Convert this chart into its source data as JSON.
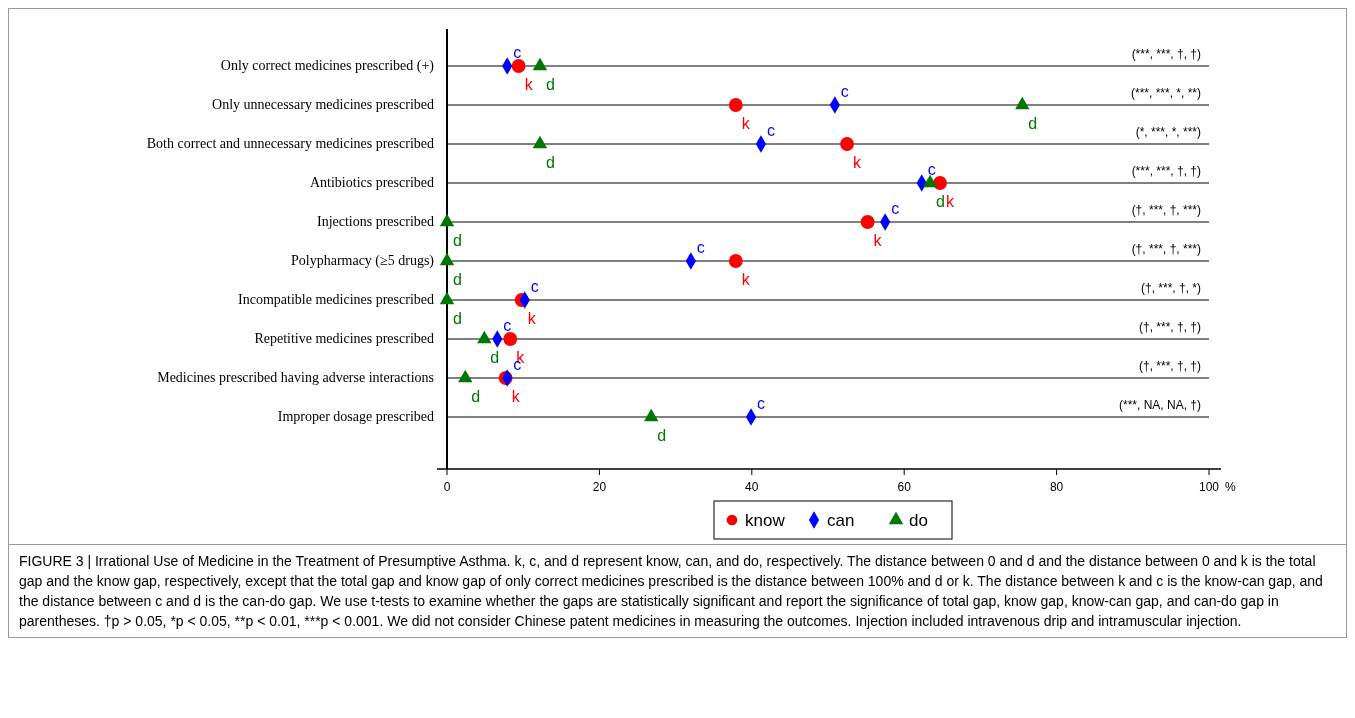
{
  "chart_data": {
    "type": "scatter",
    "orientation": "horizontal",
    "xlabel": "%",
    "categories": [
      "Only correct medicines prescribed (+)",
      "Only unnecessary medicines prescribed",
      "Both correct and unnecessary medicines prescribed",
      "Antibiotics prescribed",
      "Injections prescribed",
      "Polypharmacy (≥5 drugs)",
      "Incompatible medicines prescribed",
      "Repetitive medicines prescribed",
      "Medicines prescribed having adverse interactions",
      "Improper dosage prescribed"
    ],
    "series": [
      {
        "name": "know",
        "color": "#ff0000",
        "marker": "circle",
        "values": [
          9.4,
          37.9,
          52.5,
          64.7,
          55.2,
          37.9,
          9.8,
          8.3,
          7.7,
          null
        ]
      },
      {
        "name": "can",
        "color": "#0000ff",
        "marker": "diamond",
        "values": [
          7.9,
          50.9,
          41.2,
          62.3,
          57.5,
          32.0,
          10.2,
          6.6,
          7.9,
          39.9
        ]
      },
      {
        "name": "do",
        "color": "#007700",
        "marker": "triangle",
        "values": [
          12.2,
          75.5,
          12.2,
          63.4,
          0,
          0,
          0,
          4.9,
          2.4,
          26.8
        ]
      }
    ],
    "xlim": [
      0,
      100
    ],
    "xticks": [
      0,
      20,
      40,
      60,
      80,
      100
    ],
    "grid": "y",
    "legend": "bottom",
    "annotations": [
      {
        "text": "k",
        "x": 9.4,
        "y": "Only correct medicines prescribed (+)"
      },
      {
        "text": "c",
        "x": 7.9,
        "y": "Only correct medicines prescribed (+)"
      },
      {
        "text": "d",
        "x": 12.2,
        "y": "Only correct medicines prescribed (+)"
      },
      {
        "text": "k",
        "x": 37.9,
        "y": "Only unnecessary medicines prescribed"
      },
      {
        "text": "c",
        "x": 50.9,
        "y": "Only unnecessary medicines prescribed"
      },
      {
        "text": "d",
        "x": 75.5,
        "y": "Only unnecessary medicines prescribed"
      },
      {
        "text": "k",
        "x": 52.5,
        "y": "Both correct and unnecessary medicines prescribed"
      },
      {
        "text": "c",
        "x": 41.2,
        "y": "Both correct and unnecessary medicines prescribed"
      },
      {
        "text": "d",
        "x": 12.2,
        "y": "Both correct and unnecessary medicines prescribed"
      },
      {
        "text": "k",
        "x": 64.7,
        "y": "Antibiotics prescribed"
      },
      {
        "text": "c",
        "x": 62.3,
        "y": "Antibiotics prescribed"
      },
      {
        "text": "d",
        "x": 63.4,
        "y": "Antibiotics prescribed"
      },
      {
        "text": "k",
        "x": 55.2,
        "y": "Injections prescribed"
      },
      {
        "text": "c",
        "x": 57.5,
        "y": "Injections prescribed"
      },
      {
        "text": "d",
        "x": 0,
        "y": "Injections prescribed"
      },
      {
        "text": "k",
        "x": 37.9,
        "y": "Polypharmacy (≥5 drugs)"
      },
      {
        "text": "c",
        "x": 32.0,
        "y": "Polypharmacy (≥5 drugs)"
      },
      {
        "text": "d",
        "x": 0,
        "y": "Polypharmacy (≥5 drugs)"
      },
      {
        "text": "k",
        "x": 9.8,
        "y": "Incompatible medicines prescribed"
      },
      {
        "text": "c",
        "x": 10.2,
        "y": "Incompatible medicines prescribed"
      },
      {
        "text": "d",
        "x": 0,
        "y": "Incompatible medicines prescribed"
      },
      {
        "text": "k",
        "x": 8.3,
        "y": "Repetitive medicines prescribed"
      },
      {
        "text": "c",
        "x": 6.6,
        "y": "Repetitive medicines prescribed"
      },
      {
        "text": "d",
        "x": 4.9,
        "y": "Repetitive medicines prescribed"
      },
      {
        "text": "k",
        "x": 7.7,
        "y": "Medicines prescribed having adverse interactions"
      },
      {
        "text": "c",
        "x": 7.9,
        "y": "Medicines prescribed having adverse interactions"
      },
      {
        "text": "d",
        "x": 2.4,
        "y": "Medicines prescribed having adverse interactions"
      },
      {
        "text": "c",
        "x": 39.9,
        "y": "Improper dosage prescribed"
      },
      {
        "text": "d",
        "x": 26.8,
        "y": "Improper dosage prescribed"
      },
      "(***, ***, †, †)",
      "(***, ***, *, **)",
      "(*, ***, *, ***)",
      "(***, ***, †, †)",
      "(†, ***, †, ***)",
      "(†, ***, †, ***)",
      "(†, ***, †, *)",
      "(†, ***, †, †)",
      "(†, ***, †, †)",
      "(***, NA, NA, †)",
      "FIGURE 3 | Irrational Use of Medicine in the Treatment of Presumptive Asthma. k, c, and d represent know, can, and do, respectively. The distance between 0 and d and the distance between 0 and k is the total gap and the know gap, respectively, except that the total gap and know gap of only correct medicines prescribed is the distance between 100% and d or k. The distance between k and c is the know-can gap, and the distance between c and d is the can-do gap. We use t-tests to examine whether the gaps are statistically significant and report the significance of total gap, know gap, know-can gap, and can-do gap in parentheses. †p > 0.05, *p < 0.05, **p < 0.01, ***p < 0.001. We did not consider Chinese patent medicines in measuring the outcomes. Injection included intravenous drip and intramuscular injection."
    ]
  }
}
